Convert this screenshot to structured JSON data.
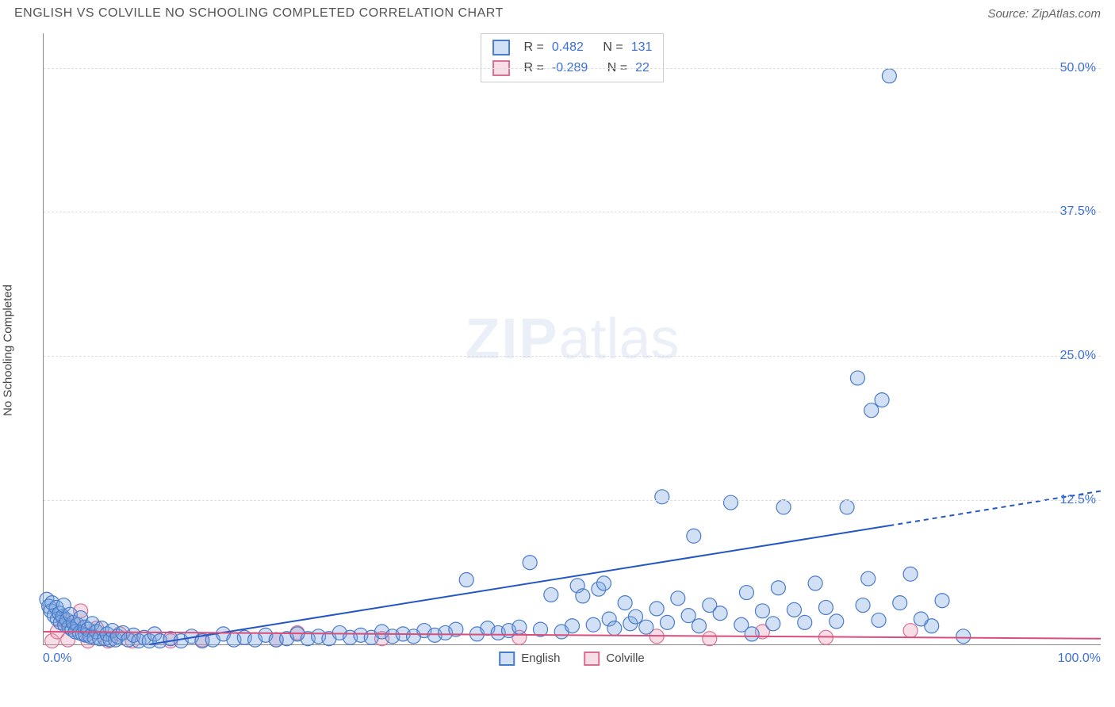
{
  "header": {
    "title": "ENGLISH VS COLVILLE NO SCHOOLING COMPLETED CORRELATION CHART",
    "source": "Source: ZipAtlas.com"
  },
  "ylabel": "No Schooling Completed",
  "watermark": {
    "zip": "ZIP",
    "atlas": "atlas"
  },
  "chart": {
    "type": "scatter",
    "background_color": "#ffffff",
    "grid_color": "#dddddd",
    "axis_color": "#888888",
    "xlim": [
      0,
      100
    ],
    "ylim": [
      0,
      53
    ],
    "xticks": {
      "min_label": "0.0%",
      "max_label": "100.0%"
    },
    "yticks": [
      {
        "value": 12.5,
        "label": "12.5%"
      },
      {
        "value": 25.0,
        "label": "25.0%"
      },
      {
        "value": 37.5,
        "label": "37.5%"
      },
      {
        "value": 50.0,
        "label": "50.0%"
      }
    ],
    "xtick_color": "#3b6fd6",
    "ytick_color": "#3b6fd6",
    "tick_fontsize": 16,
    "marker_radius": 9,
    "marker_stroke_width": 1.2,
    "marker_fill_opacity": 0.35,
    "line_width": 2,
    "dash_pattern": "6,5"
  },
  "series": {
    "english": {
      "label": "English",
      "color": "#7ba7e0",
      "stroke": "#4a7bc8",
      "fill": "rgba(123,167,224,0.35)",
      "stats": {
        "R": "0.482",
        "N": "131"
      },
      "trend": {
        "solid": [
          [
            10,
            0
          ],
          [
            80,
            10.3
          ]
        ],
        "dashed": [
          [
            80,
            10.3
          ],
          [
            100,
            13.3
          ]
        ],
        "color": "#2456c4"
      },
      "points": [
        [
          0.3,
          3.9
        ],
        [
          0.5,
          3.3
        ],
        [
          0.7,
          2.9
        ],
        [
          0.8,
          3.6
        ],
        [
          1.0,
          2.5
        ],
        [
          1.2,
          3.2
        ],
        [
          1.3,
          2.2
        ],
        [
          1.5,
          2.7
        ],
        [
          1.6,
          1.9
        ],
        [
          1.8,
          2.4
        ],
        [
          1.9,
          3.4
        ],
        [
          2.0,
          1.7
        ],
        [
          2.2,
          2.1
        ],
        [
          2.4,
          1.5
        ],
        [
          2.5,
          2.6
        ],
        [
          2.7,
          1.3
        ],
        [
          2.8,
          1.9
        ],
        [
          3.0,
          1.1
        ],
        [
          3.2,
          1.7
        ],
        [
          3.4,
          1.0
        ],
        [
          3.5,
          2.3
        ],
        [
          3.7,
          0.9
        ],
        [
          3.9,
          1.5
        ],
        [
          4.0,
          0.8
        ],
        [
          4.2,
          1.3
        ],
        [
          4.4,
          0.7
        ],
        [
          4.6,
          1.8
        ],
        [
          4.8,
          0.6
        ],
        [
          5.0,
          1.1
        ],
        [
          5.3,
          0.5
        ],
        [
          5.5,
          1.4
        ],
        [
          5.8,
          0.5
        ],
        [
          6.0,
          0.9
        ],
        [
          6.3,
          0.4
        ],
        [
          6.5,
          1.2
        ],
        [
          6.8,
          0.4
        ],
        [
          7.0,
          0.7
        ],
        [
          7.5,
          1.0
        ],
        [
          8.0,
          0.4
        ],
        [
          8.5,
          0.8
        ],
        [
          9.0,
          0.3
        ],
        [
          9.5,
          0.6
        ],
        [
          10.0,
          0.3
        ],
        [
          10.5,
          0.9
        ],
        [
          11.0,
          0.3
        ],
        [
          12.0,
          0.5
        ],
        [
          13.0,
          0.3
        ],
        [
          14.0,
          0.7
        ],
        [
          15.0,
          0.3
        ],
        [
          16.0,
          0.4
        ],
        [
          17.0,
          0.9
        ],
        [
          18.0,
          0.4
        ],
        [
          19.0,
          0.6
        ],
        [
          20.0,
          0.4
        ],
        [
          21.0,
          0.8
        ],
        [
          22.0,
          0.4
        ],
        [
          23.0,
          0.5
        ],
        [
          24.0,
          0.9
        ],
        [
          25.0,
          0.5
        ],
        [
          26.0,
          0.7
        ],
        [
          27.0,
          0.5
        ],
        [
          28.0,
          1.0
        ],
        [
          29.0,
          0.6
        ],
        [
          30.0,
          0.8
        ],
        [
          31.0,
          0.6
        ],
        [
          32.0,
          1.1
        ],
        [
          33.0,
          0.7
        ],
        [
          34.0,
          0.9
        ],
        [
          35.0,
          0.7
        ],
        [
          36.0,
          1.2
        ],
        [
          37.0,
          0.8
        ],
        [
          38.0,
          1.0
        ],
        [
          39.0,
          1.3
        ],
        [
          40.0,
          5.6
        ],
        [
          41.0,
          0.9
        ],
        [
          42.0,
          1.4
        ],
        [
          43.0,
          1.0
        ],
        [
          44.0,
          1.2
        ],
        [
          45.0,
          1.5
        ],
        [
          46.0,
          7.1
        ],
        [
          47.0,
          1.3
        ],
        [
          48.0,
          4.3
        ],
        [
          49.0,
          1.1
        ],
        [
          50.0,
          1.6
        ],
        [
          50.5,
          5.1
        ],
        [
          51.0,
          4.2
        ],
        [
          52.0,
          1.7
        ],
        [
          52.5,
          4.8
        ],
        [
          53.0,
          5.3
        ],
        [
          53.5,
          2.2
        ],
        [
          54.0,
          1.4
        ],
        [
          55.0,
          3.6
        ],
        [
          55.5,
          1.8
        ],
        [
          56.0,
          2.4
        ],
        [
          57.0,
          1.5
        ],
        [
          58.0,
          3.1
        ],
        [
          58.5,
          12.8
        ],
        [
          59.0,
          1.9
        ],
        [
          60.0,
          4.0
        ],
        [
          61.0,
          2.5
        ],
        [
          61.5,
          9.4
        ],
        [
          62.0,
          1.6
        ],
        [
          63.0,
          3.4
        ],
        [
          64.0,
          2.7
        ],
        [
          65.0,
          12.3
        ],
        [
          66.0,
          1.7
        ],
        [
          66.5,
          4.5
        ],
        [
          67.0,
          0.9
        ],
        [
          68.0,
          2.9
        ],
        [
          69.0,
          1.8
        ],
        [
          69.5,
          4.9
        ],
        [
          70.0,
          11.9
        ],
        [
          71.0,
          3.0
        ],
        [
          72.0,
          1.9
        ],
        [
          73.0,
          5.3
        ],
        [
          74.0,
          3.2
        ],
        [
          75.0,
          2.0
        ],
        [
          76.0,
          11.9
        ],
        [
          77.0,
          23.1
        ],
        [
          77.5,
          3.4
        ],
        [
          78.0,
          5.7
        ],
        [
          78.3,
          20.3
        ],
        [
          79.0,
          2.1
        ],
        [
          79.3,
          21.2
        ],
        [
          80.0,
          49.3
        ],
        [
          81.0,
          3.6
        ],
        [
          82.0,
          6.1
        ],
        [
          83.0,
          2.2
        ],
        [
          84.0,
          1.6
        ],
        [
          85.0,
          3.8
        ],
        [
          87.0,
          0.7
        ]
      ]
    },
    "colville": {
      "label": "Colville",
      "color": "#e8a0b8",
      "stroke": "#d87095",
      "fill": "rgba(232,160,184,0.35)",
      "stats": {
        "R": "-0.289",
        "N": "22"
      },
      "trend": {
        "solid": [
          [
            0,
            1.1
          ],
          [
            100,
            0.5
          ]
        ],
        "dashed": null,
        "color": "#d94f7a"
      },
      "points": [
        [
          0.8,
          0.3
        ],
        [
          1.3,
          1.1
        ],
        [
          1.9,
          2.1
        ],
        [
          2.3,
          0.4
        ],
        [
          3.0,
          1.7
        ],
        [
          3.5,
          2.9
        ],
        [
          4.2,
          0.3
        ],
        [
          5.0,
          1.4
        ],
        [
          6.1,
          0.3
        ],
        [
          7.2,
          0.9
        ],
        [
          8.4,
          0.3
        ],
        [
          12.0,
          0.3
        ],
        [
          15.0,
          0.4
        ],
        [
          22.0,
          0.4
        ],
        [
          24.0,
          1.0
        ],
        [
          32.0,
          0.5
        ],
        [
          45.0,
          0.6
        ],
        [
          58.0,
          0.7
        ],
        [
          63.0,
          0.5
        ],
        [
          68.0,
          1.1
        ],
        [
          74.0,
          0.6
        ],
        [
          82.0,
          1.2
        ]
      ]
    }
  },
  "stats_box": {
    "r_label": "R =",
    "n_label": "N ="
  }
}
